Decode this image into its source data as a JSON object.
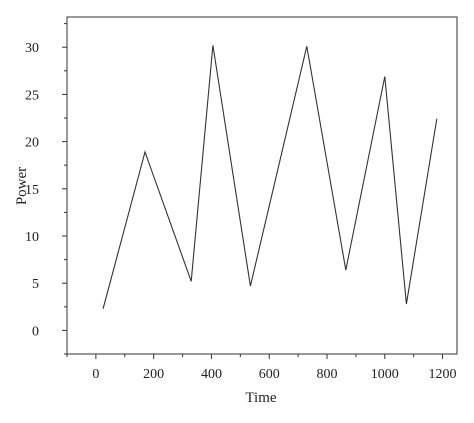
{
  "chart_data": {
    "type": "line",
    "title": "",
    "xlabel": "Time",
    "ylabel": "Power",
    "xlim": [
      -100,
      1250
    ],
    "ylim": [
      -2.5,
      33.2
    ],
    "xticks": [
      0,
      200,
      400,
      600,
      800,
      1000,
      1200
    ],
    "yticks": [
      0,
      5,
      10,
      15,
      20,
      25,
      30
    ],
    "x_minor_step": 100,
    "y_minor_step": 2.5,
    "grid": false,
    "line_color": "#333333",
    "series": [
      {
        "x": [
          25,
          170,
          330,
          405,
          535,
          730,
          865,
          1000,
          1075,
          1180
        ],
        "values": [
          2.3,
          18.9,
          5.2,
          30.2,
          4.7,
          30.1,
          6.4,
          26.9,
          2.8,
          22.4
        ]
      }
    ]
  }
}
